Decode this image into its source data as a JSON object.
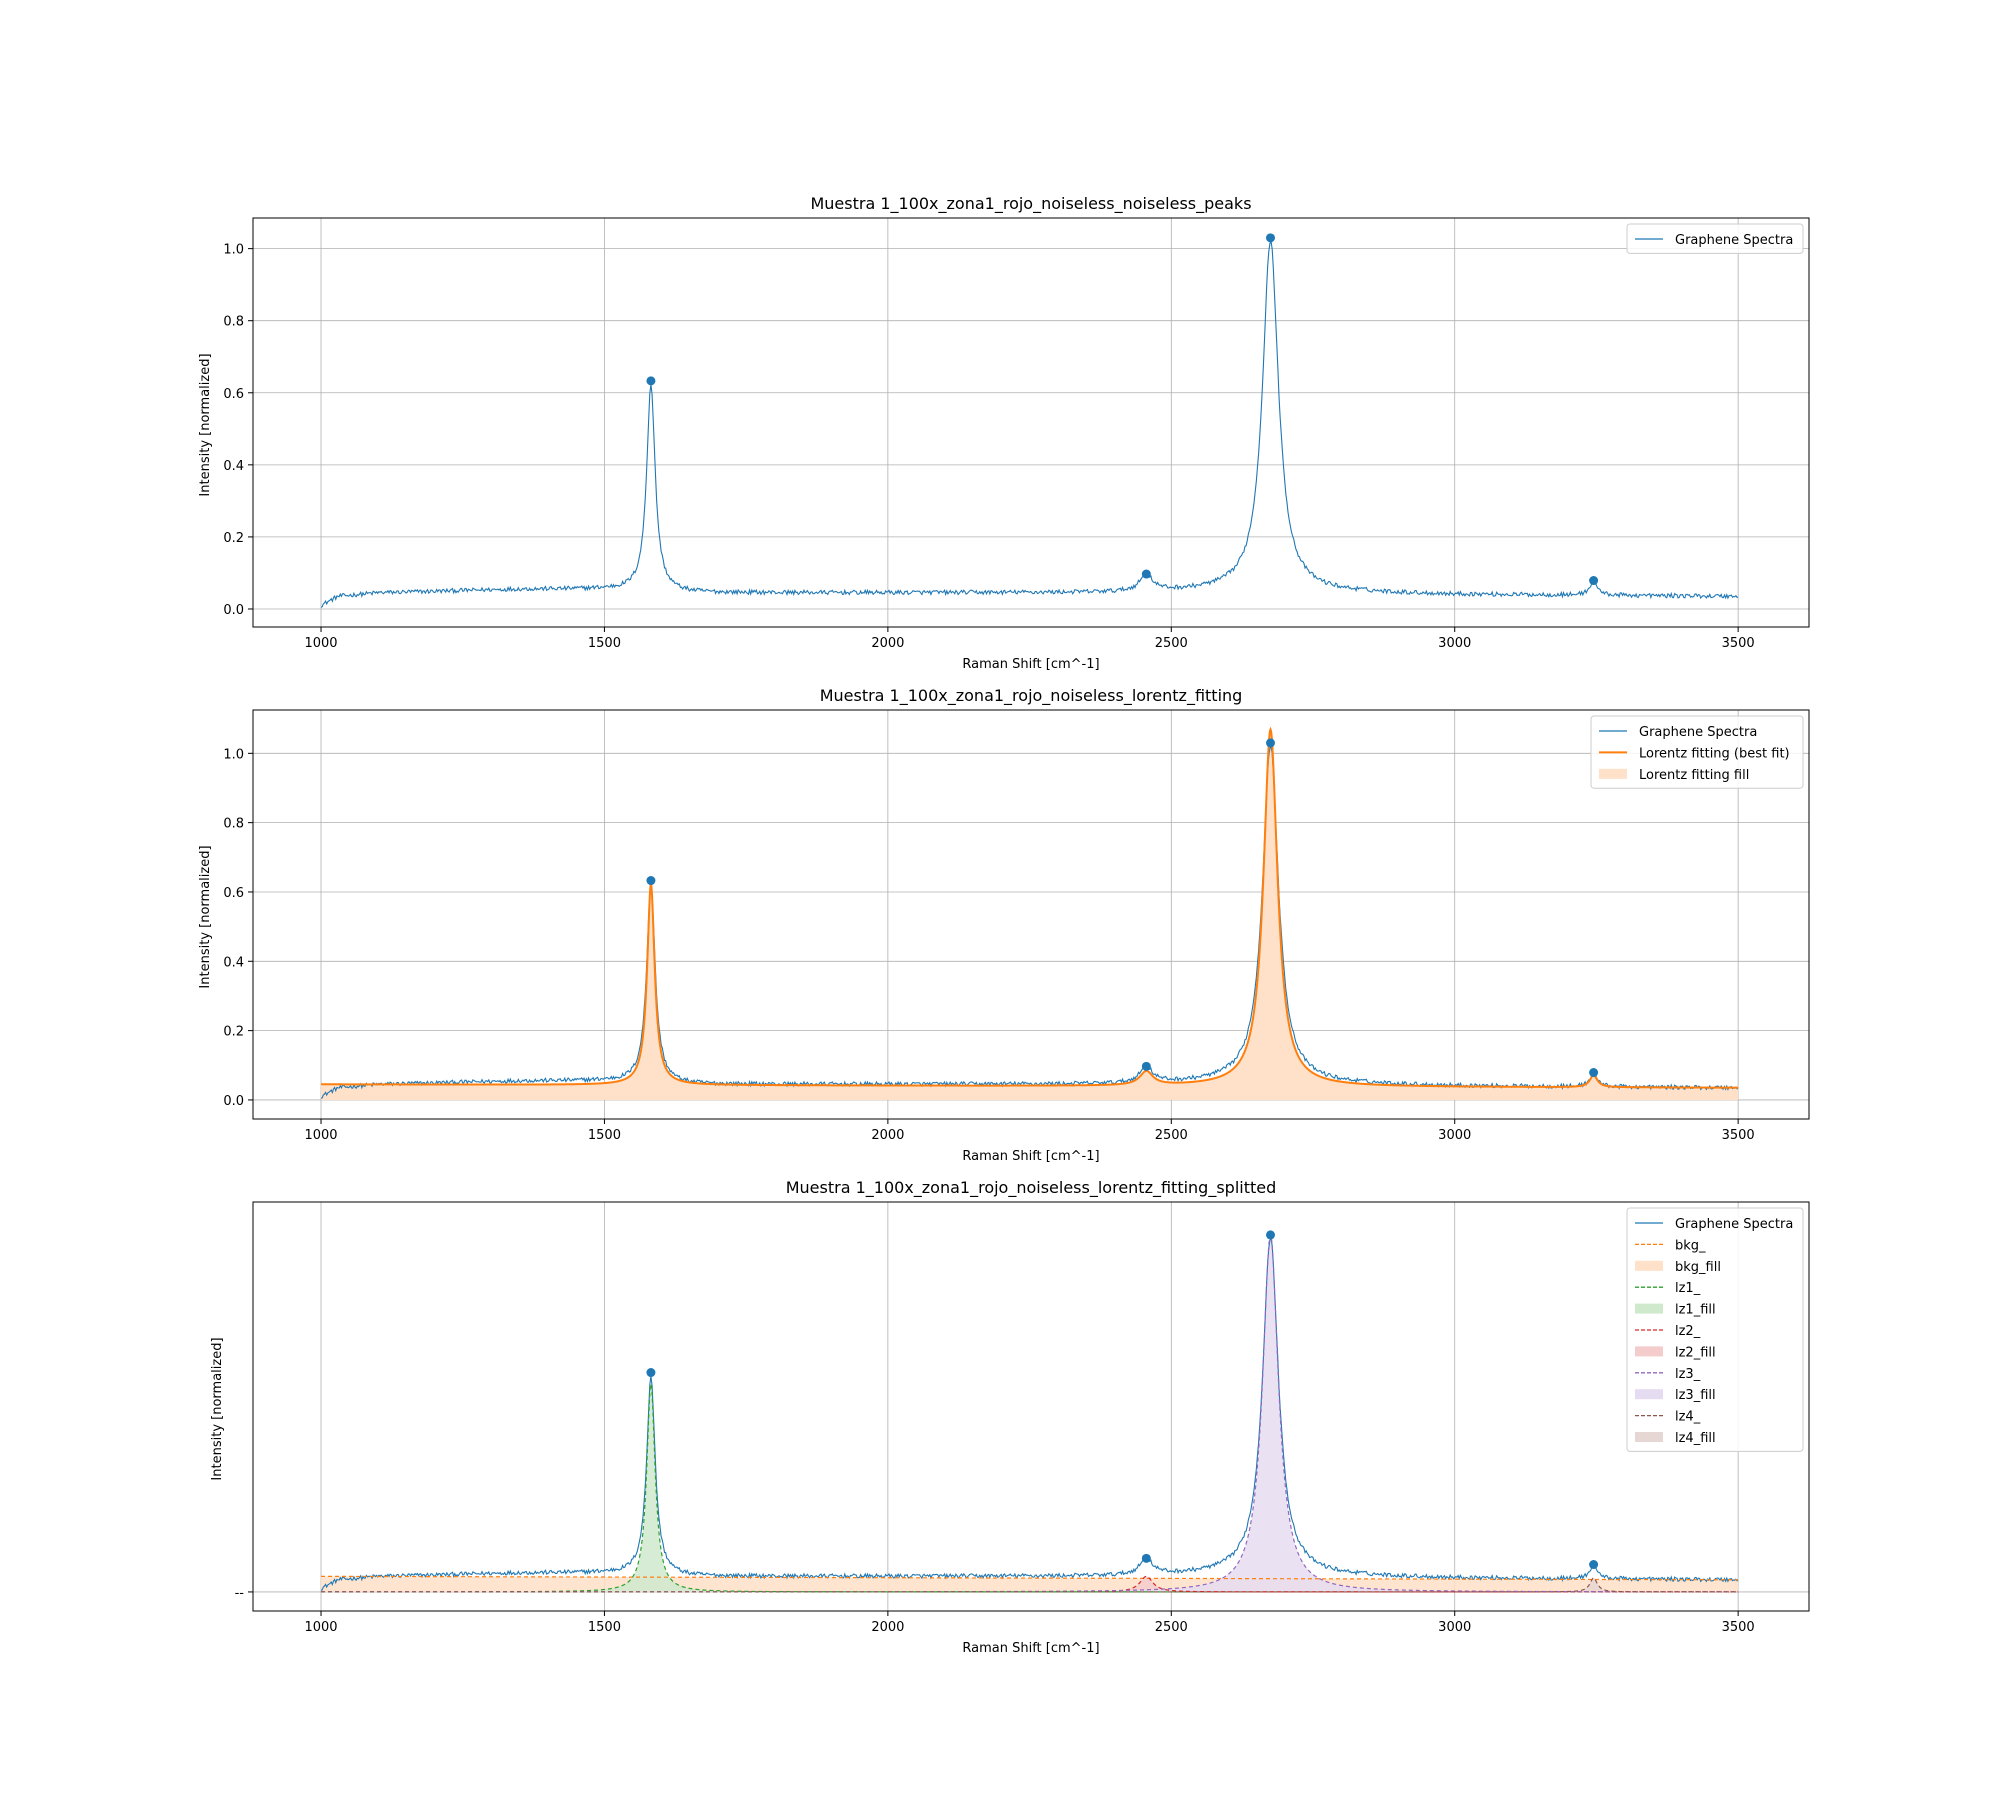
{
  "chart_data": [
    {
      "type": "line",
      "title": "Muestra 1_100x_zona1_rojo_noiseless_noiseless_peaks",
      "xlabel": "Raman Shift [cm^-1]",
      "ylabel": "Intensity [normalized]",
      "xlim": [
        880,
        3625
      ],
      "ylim": [
        -0.05,
        1.085
      ],
      "xticks": [
        1000,
        1500,
        2000,
        2500,
        3000,
        3500
      ],
      "yticks": [
        0.0,
        0.2,
        0.4,
        0.6,
        0.8,
        1.0
      ],
      "ytick_labels": [
        "0.0",
        "0.2",
        "0.4",
        "0.6",
        "0.8",
        "1.0"
      ],
      "grid": true,
      "legend_position": "top-right",
      "spectrum": {
        "x_range": [
          1000,
          3500
        ],
        "baseline": [
          [
            1000,
            0.01
          ],
          [
            1030,
            0.035
          ],
          [
            1100,
            0.045
          ],
          [
            1350,
            0.055
          ],
          [
            1500,
            0.055
          ],
          [
            1650,
            0.045
          ],
          [
            2000,
            0.045
          ],
          [
            2400,
            0.045
          ],
          [
            2600,
            0.05
          ],
          [
            3000,
            0.04
          ],
          [
            3500,
            0.035
          ]
        ],
        "peaks": [
          {
            "x": 1582,
            "height": 0.575,
            "hwhm": 9
          },
          {
            "x": 2456,
            "height": 0.045,
            "hwhm": 14
          },
          {
            "x": 2675,
            "height": 0.975,
            "hwhm": 17
          },
          {
            "x": 3245,
            "height": 0.04,
            "hwhm": 8
          }
        ],
        "noise_amplitude": 0.006
      },
      "markers": [
        {
          "x": 1582,
          "y": 0.633
        },
        {
          "x": 2456,
          "y": 0.097
        },
        {
          "x": 2675,
          "y": 1.03
        },
        {
          "x": 3245,
          "y": 0.079
        }
      ],
      "series": [
        {
          "name": "Graphene Spectra",
          "kind": "spectrum",
          "color": "#1f77b4"
        }
      ]
    },
    {
      "type": "line",
      "title": "Muestra 1_100x_zona1_rojo_noiseless_lorentz_fitting",
      "xlabel": "Raman Shift [cm^-1]",
      "ylabel": "Intensity [normalized]",
      "xlim": [
        880,
        3625
      ],
      "ylim": [
        -0.055,
        1.125
      ],
      "xticks": [
        1000,
        1500,
        2000,
        2500,
        3000,
        3500
      ],
      "yticks": [
        0.0,
        0.2,
        0.4,
        0.6,
        0.8,
        1.0
      ],
      "ytick_labels": [
        "0.0",
        "0.2",
        "0.4",
        "0.6",
        "0.8",
        "1.0"
      ],
      "grid": true,
      "legend_position": "top-right",
      "fit": {
        "background": [
          [
            1000,
            0.045
          ],
          [
            3500,
            0.035
          ]
        ],
        "peaks": [
          {
            "x": 1582,
            "height": 0.58,
            "hwhm": 8
          },
          {
            "x": 2456,
            "height": 0.04,
            "hwhm": 14
          },
          {
            "x": 2675,
            "height": 1.03,
            "hwhm": 15
          },
          {
            "x": 3245,
            "height": 0.035,
            "hwhm": 8
          }
        ]
      },
      "series": [
        {
          "name": "Graphene Spectra",
          "kind": "spectrum",
          "color": "#1f77b4"
        },
        {
          "name": "Lorentz fitting (best fit)",
          "kind": "fit",
          "color": "#ff7f0e"
        },
        {
          "name": "Lorentz fitting fill",
          "kind": "fitfill",
          "color": "#ffe0c8"
        }
      ]
    },
    {
      "type": "line",
      "title": "Muestra 1_100x_zona1_rojo_noiseless_lorentz_fitting_splitted",
      "xlabel": "Raman Shift [cm^-1]",
      "ylabel": "Intensity [normalized]",
      "xlim": [
        880,
        3625
      ],
      "ylim": [
        -0.055,
        1.125
      ],
      "xticks": [
        1000,
        1500,
        2000,
        2500,
        3000,
        3500
      ],
      "yticks": [
        0.0
      ],
      "ytick_labels": [
        "--"
      ],
      "grid": true,
      "legend_position": "top-right",
      "components": [
        {
          "name": "bkg_",
          "fill_name": "bkg_fill",
          "kind": "bkg",
          "line_color": "#ff7f0e",
          "fill_color": "#ffe0c8",
          "line": [
            [
              1000,
              0.045
            ],
            [
              3500,
              0.035
            ]
          ]
        },
        {
          "name": "lz1_",
          "fill_name": "lz1_fill",
          "kind": "lorentz",
          "line_color": "#2ca02c",
          "fill_color": "#cfe9cd",
          "x": 1582,
          "height": 0.6,
          "hwhm": 9
        },
        {
          "name": "lz2_",
          "fill_name": "lz2_fill",
          "kind": "lorentz",
          "line_color": "#d62728",
          "fill_color": "#f5cccc",
          "x": 2456,
          "height": 0.045,
          "hwhm": 14
        },
        {
          "name": "lz3_",
          "fill_name": "lz3_fill",
          "kind": "lorentz",
          "line_color": "#9467bd",
          "fill_color": "#e6dcf1",
          "x": 2675,
          "height": 1.03,
          "hwhm": 17
        },
        {
          "name": "lz4_",
          "fill_name": "lz4_fill",
          "kind": "lorentz",
          "line_color": "#8c564b",
          "fill_color": "#e6d7d4",
          "x": 3245,
          "height": 0.04,
          "hwhm": 8
        }
      ],
      "series": [
        {
          "name": "Graphene Spectra",
          "kind": "spectrum",
          "color": "#1f77b4"
        }
      ]
    }
  ]
}
